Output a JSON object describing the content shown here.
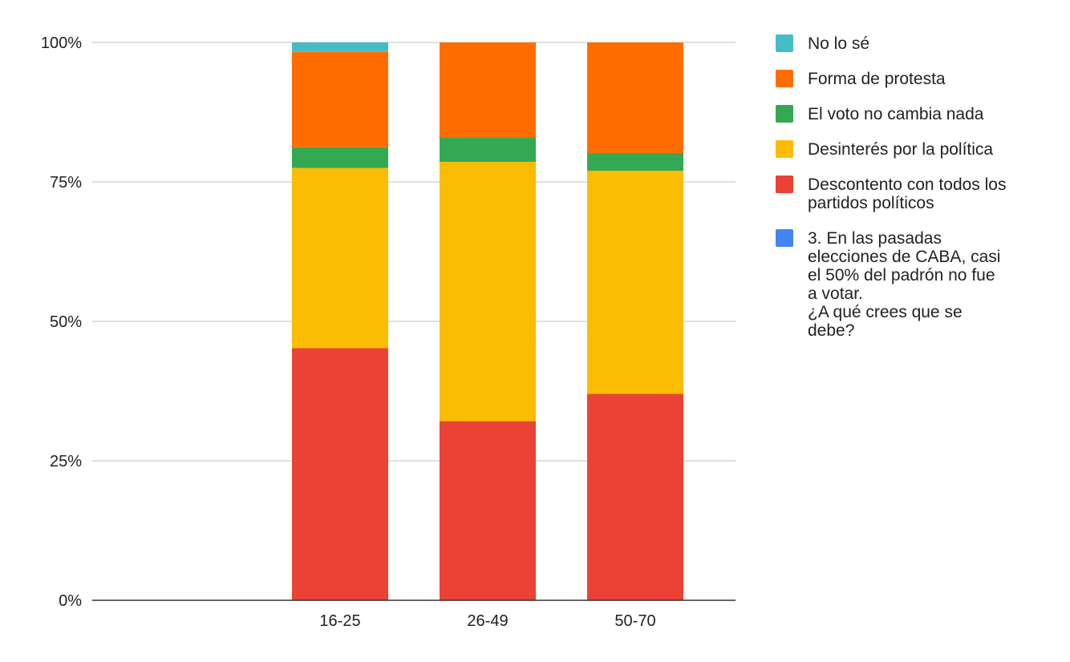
{
  "chart_data": {
    "type": "bar",
    "stacked": true,
    "normalized": true,
    "categories": [
      "16-25",
      "26-49",
      "50-70"
    ],
    "y_ticks": [
      "0%",
      "25%",
      "50%",
      "75%",
      "100%"
    ],
    "ylim": [
      0,
      100
    ],
    "grid": true,
    "legend_position": "right",
    "series": [
      {
        "name": "3. En las pasadas elecciones de CABA, casi el 50% del padrón no fue a votar. ¿A qué crees que se debe?",
        "color": "#4285f4",
        "values": [
          0,
          0,
          0
        ]
      },
      {
        "name": "Descontento con todos los partidos políticos",
        "color": "#ea4335",
        "values": [
          45.2,
          32.1,
          37.0
        ]
      },
      {
        "name": "Desinterés por la política",
        "color": "#fbbc04",
        "values": [
          32.3,
          46.5,
          40.0
        ]
      },
      {
        "name": "El voto no cambia nada",
        "color": "#34a853",
        "values": [
          3.7,
          4.3,
          3.1
        ]
      },
      {
        "name": "Forma de protesta",
        "color": "#ff6d01",
        "values": [
          17.1,
          17.1,
          19.9
        ]
      },
      {
        "name": "No lo sé",
        "color": "#46bdc6",
        "values": [
          1.7,
          0,
          0
        ]
      }
    ],
    "legend": [
      {
        "lines": [
          "No lo sé"
        ],
        "color": "#46bdc6"
      },
      {
        "lines": [
          "Forma de protesta"
        ],
        "color": "#ff6d01"
      },
      {
        "lines": [
          "El voto no cambia nada"
        ],
        "color": "#34a853"
      },
      {
        "lines": [
          "Desinterés por la política"
        ],
        "color": "#fbbc04"
      },
      {
        "lines": [
          "Descontento con todos los",
          "partidos políticos"
        ],
        "color": "#ea4335"
      },
      {
        "lines": [
          "3. En las pasadas",
          "elecciones de CABA, casi",
          "el 50% del padrón no fue",
          "a votar.",
          " ¿A qué crees que se",
          "debe?"
        ],
        "color": "#4285f4"
      }
    ]
  }
}
